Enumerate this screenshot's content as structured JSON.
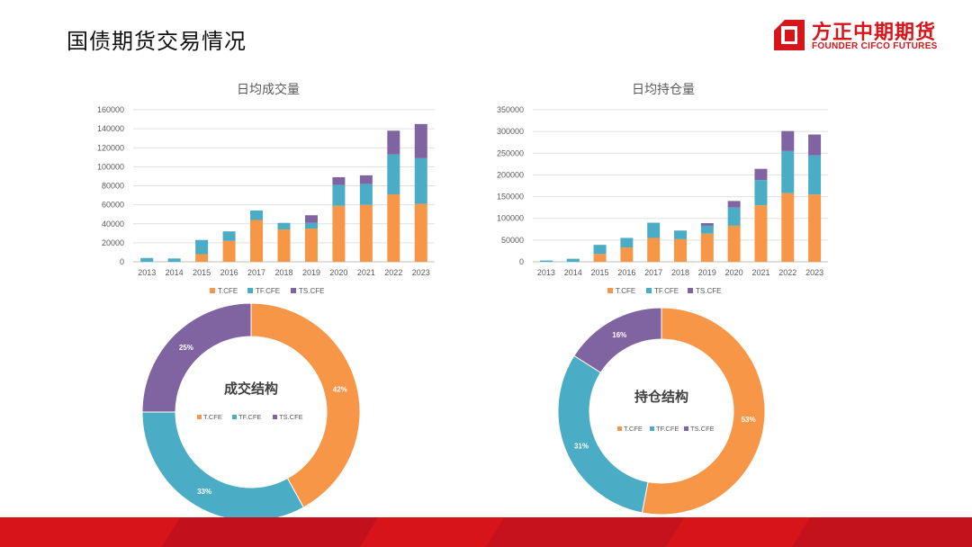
{
  "page": {
    "title": "国债期货交易情况"
  },
  "logo": {
    "cn": "方正中期期货",
    "en": "FOUNDER CIFCO FUTURES"
  },
  "colors": {
    "T.CFE": "#f79646",
    "TF.CFE": "#4bacc6",
    "TS.CFE": "#8064a2",
    "brand": "#d7141a"
  },
  "chart_data": [
    {
      "type": "bar",
      "stacked": true,
      "title": "日均成交量",
      "categories": [
        "2013",
        "2014",
        "2015",
        "2016",
        "2017",
        "2018",
        "2019",
        "2020",
        "2021",
        "2022",
        "2023"
      ],
      "ylim": [
        0,
        160000
      ],
      "yticks": [
        0,
        20000,
        40000,
        60000,
        80000,
        100000,
        120000,
        140000,
        160000
      ],
      "grid": true,
      "legend": "bottom",
      "series": [
        {
          "name": "T.CFE",
          "values": [
            0,
            0,
            8000,
            22000,
            44000,
            34000,
            35000,
            59000,
            60000,
            71000,
            61000
          ]
        },
        {
          "name": "TF.CFE",
          "values": [
            4000,
            3500,
            15000,
            10000,
            10000,
            7000,
            6000,
            22000,
            22000,
            42000,
            48000
          ]
        },
        {
          "name": "TS.CFE",
          "values": [
            0,
            0,
            0,
            0,
            0,
            0,
            8000,
            8000,
            9000,
            25000,
            36000
          ]
        }
      ]
    },
    {
      "type": "bar",
      "stacked": true,
      "title": "日均持仓量",
      "categories": [
        "2013",
        "2014",
        "2015",
        "2016",
        "2017",
        "2018",
        "2019",
        "2020",
        "2021",
        "2022",
        "2023"
      ],
      "ylim": [
        0,
        350000
      ],
      "yticks": [
        0,
        50000,
        100000,
        150000,
        200000,
        250000,
        300000,
        350000
      ],
      "grid": true,
      "legend": "bottom",
      "series": [
        {
          "name": "T.CFE",
          "values": [
            0,
            0,
            18000,
            33000,
            55000,
            52000,
            65000,
            83000,
            130000,
            158000,
            155000
          ]
        },
        {
          "name": "TF.CFE",
          "values": [
            3000,
            7000,
            21000,
            22000,
            35000,
            20000,
            18000,
            42000,
            58000,
            97000,
            90000
          ]
        },
        {
          "name": "TS.CFE",
          "values": [
            0,
            0,
            0,
            0,
            0,
            0,
            6000,
            15000,
            26000,
            46000,
            48000
          ]
        }
      ]
    },
    {
      "type": "pie",
      "donut": true,
      "title": "成交结构",
      "legend": "inside-center",
      "labels": [
        "T.CFE",
        "TF.CFE",
        "TS.CFE"
      ],
      "values": [
        42,
        33,
        25
      ],
      "data_labels": [
        "42%",
        "33%",
        "25%"
      ]
    },
    {
      "type": "pie",
      "donut": true,
      "title": "持仓结构",
      "legend": "inside-center",
      "labels": [
        "T.CFE",
        "TF.CFE",
        "TS.CFE"
      ],
      "values": [
        53,
        31,
        16
      ],
      "data_labels": [
        "53%",
        "31%",
        "16%"
      ]
    }
  ]
}
